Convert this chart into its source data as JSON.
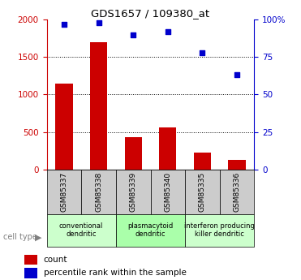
{
  "title": "GDS1657 / 109380_at",
  "samples": [
    "GSM85337",
    "GSM85338",
    "GSM85339",
    "GSM85340",
    "GSM85335",
    "GSM85336"
  ],
  "counts": [
    1150,
    1700,
    430,
    560,
    220,
    130
  ],
  "percentiles": [
    97,
    98,
    90,
    92,
    78,
    63
  ],
  "groups": [
    {
      "label": "conventional\ndendritic",
      "indices": [
        0,
        1
      ],
      "color": "#ccffcc"
    },
    {
      "label": "plasmacytoid\ndendritic",
      "indices": [
        2,
        3
      ],
      "color": "#aaffaa"
    },
    {
      "label": "interferon producing\nkiller dendritic",
      "indices": [
        4,
        5
      ],
      "color": "#ccffcc"
    }
  ],
  "bar_color": "#cc0000",
  "dot_color": "#0000cc",
  "left_axis_color": "#cc0000",
  "right_axis_color": "#0000cc",
  "ylim_left": [
    0,
    2000
  ],
  "ylim_right": [
    0,
    100
  ],
  "yticks_left": [
    0,
    500,
    1000,
    1500,
    2000
  ],
  "yticks_right": [
    0,
    25,
    50,
    75,
    100
  ],
  "ytick_labels_right": [
    "0",
    "25",
    "50",
    "75",
    "100%"
  ],
  "grid_values": [
    500,
    1000,
    1500
  ],
  "bar_width": 0.5,
  "sample_box_color": "#cccccc",
  "legend_count_label": "count",
  "legend_pct_label": "percentile rank within the sample",
  "cell_type_label": "cell type"
}
